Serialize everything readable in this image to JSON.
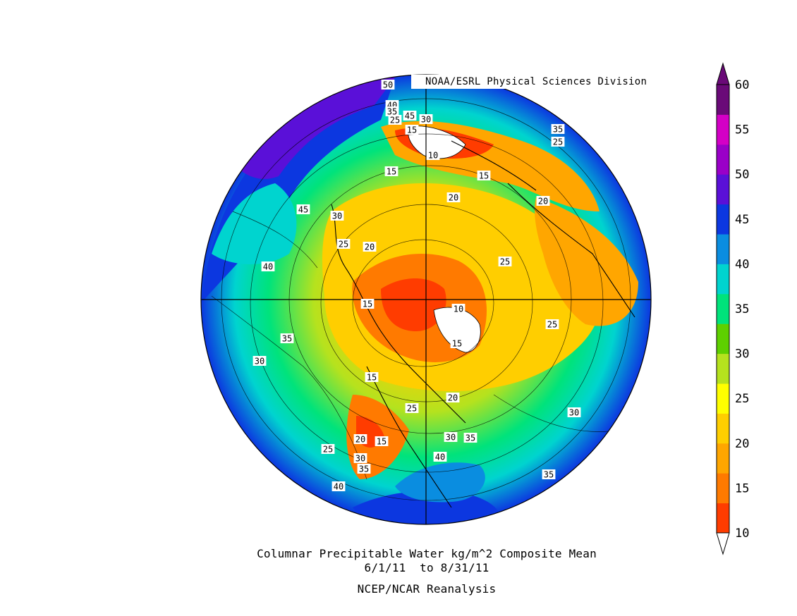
{
  "credit": "NOAA/ESRL Physical Sciences Division",
  "caption": {
    "line1": "Columnar Precipitable Water kg/m^2 Composite Mean",
    "line2": "6/1/11  to 8/31/11",
    "line3": "NCEP/NCAR Reanalysis"
  },
  "colorbar": {
    "ticks": [
      "10",
      "15",
      "20",
      "25",
      "30",
      "35",
      "40",
      "45",
      "50",
      "55",
      "60"
    ],
    "colors": [
      "#ff3c00",
      "#ff7a00",
      "#ffa600",
      "#ffce00",
      "#ffff00",
      "#b5e21e",
      "#5ed000",
      "#00e37b",
      "#00d4cf",
      "#0a8de0",
      "#0c37e0",
      "#5a10d8",
      "#9a00c8",
      "#d400c6",
      "#6a0a78"
    ]
  },
  "contour_labels": [
    {
      "text": "50"
    },
    {
      "text": "40"
    },
    {
      "text": "35"
    },
    {
      "text": "25"
    },
    {
      "text": "45"
    },
    {
      "text": "30"
    },
    {
      "text": "15"
    },
    {
      "text": "10"
    },
    {
      "text": "15"
    },
    {
      "text": "15"
    },
    {
      "text": "20"
    },
    {
      "text": "35"
    },
    {
      "text": "25"
    },
    {
      "text": "20"
    },
    {
      "text": "45"
    },
    {
      "text": "30"
    },
    {
      "text": "25"
    },
    {
      "text": "20"
    },
    {
      "text": "25"
    },
    {
      "text": "40"
    },
    {
      "text": "15"
    },
    {
      "text": "10"
    },
    {
      "text": "15"
    },
    {
      "text": "25"
    },
    {
      "text": "35"
    },
    {
      "text": "30"
    },
    {
      "text": "15"
    },
    {
      "text": "20"
    },
    {
      "text": "25"
    },
    {
      "text": "30"
    },
    {
      "text": "20"
    },
    {
      "text": "15"
    },
    {
      "text": "30"
    },
    {
      "text": "35"
    },
    {
      "text": "40"
    },
    {
      "text": "25"
    },
    {
      "text": "30"
    },
    {
      "text": "35"
    },
    {
      "text": "40"
    },
    {
      "text": "35"
    }
  ]
}
